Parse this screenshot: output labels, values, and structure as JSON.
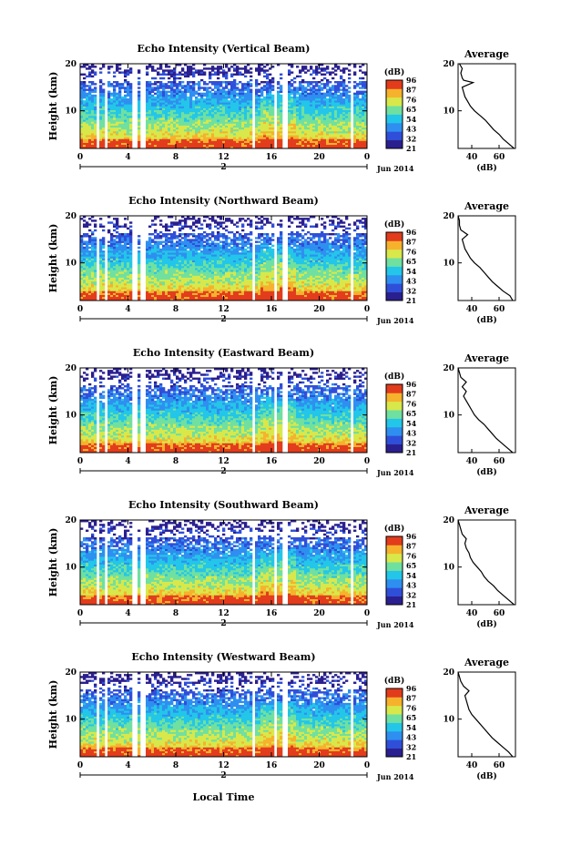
{
  "figure": {
    "xlabel": "Local Time",
    "colorbar_unit": "(dB)",
    "colorbar_ticks": [
      "96",
      "87",
      "76",
      "65",
      "54",
      "43",
      "32",
      "21"
    ],
    "colormap": [
      "#2a1f8f",
      "#2f4fd9",
      "#2e8ff0",
      "#23c6e8",
      "#6fe0a0",
      "#d8e84a",
      "#f6b22c",
      "#e23c1c"
    ]
  },
  "chart_data": [
    {
      "type": "heatmap",
      "title": "Echo Intensity (Vertical Beam)",
      "ylabel": "Height (km)",
      "yticks": [
        "20",
        "10"
      ],
      "ylim": [
        2,
        20
      ],
      "xticks": [
        "0",
        "4",
        "8",
        "12",
        "16",
        "20",
        "0"
      ],
      "xlim": [
        0,
        24
      ],
      "date_label": "2",
      "date_suffix": "Jun 2014",
      "gaps_hours": [
        [
          1.4,
          1.7
        ],
        [
          2.0,
          2.2
        ],
        [
          4.4,
          4.7
        ],
        [
          5.1,
          5.4
        ],
        [
          14.3,
          14.6
        ],
        [
          16.2,
          16.5
        ],
        [
          17.0,
          17.3
        ],
        [
          22.6,
          22.9
        ]
      ],
      "average": {
        "title": "Average",
        "xlabel": "(dB)",
        "xticks": [
          "40",
          "60"
        ],
        "yticks": [
          "20",
          "10"
        ],
        "xlim": [
          30,
          72
        ],
        "profile": [
          [
            71,
            2
          ],
          [
            67,
            3
          ],
          [
            63,
            4
          ],
          [
            60,
            5
          ],
          [
            56,
            6
          ],
          [
            53,
            7
          ],
          [
            50,
            8
          ],
          [
            46,
            9
          ],
          [
            42,
            10
          ],
          [
            39,
            11
          ],
          [
            37,
            12
          ],
          [
            35,
            13
          ],
          [
            34,
            14
          ],
          [
            33,
            15
          ],
          [
            41,
            16
          ],
          [
            34,
            16.5
          ],
          [
            33,
            17
          ],
          [
            32,
            18
          ],
          [
            33,
            19
          ],
          [
            31,
            20
          ]
        ]
      }
    },
    {
      "type": "heatmap",
      "title": "Echo Intensity (Northward Beam)",
      "ylabel": "Height (km)",
      "yticks": [
        "20",
        "10"
      ],
      "ylim": [
        2,
        20
      ],
      "xticks": [
        "0",
        "4",
        "8",
        "12",
        "16",
        "20",
        "0"
      ],
      "xlim": [
        0,
        24
      ],
      "date_label": "2",
      "date_suffix": "Jun 2014",
      "gaps_hours": [
        [
          1.4,
          1.7
        ],
        [
          2.0,
          2.2
        ],
        [
          4.4,
          4.7
        ],
        [
          5.1,
          5.4
        ],
        [
          14.3,
          14.6
        ],
        [
          16.2,
          16.5
        ],
        [
          17.0,
          17.3
        ],
        [
          22.6,
          22.9
        ]
      ],
      "average": {
        "title": "Average",
        "xlabel": "(dB)",
        "xticks": [
          "40",
          "60"
        ],
        "yticks": [
          "20",
          "10"
        ],
        "xlim": [
          30,
          72
        ],
        "profile": [
          [
            70,
            2
          ],
          [
            68,
            3
          ],
          [
            63,
            4
          ],
          [
            59,
            5
          ],
          [
            55,
            6
          ],
          [
            52,
            7
          ],
          [
            49,
            8
          ],
          [
            46,
            9
          ],
          [
            42,
            10
          ],
          [
            39,
            11
          ],
          [
            37,
            12
          ],
          [
            35,
            13
          ],
          [
            34,
            14
          ],
          [
            33,
            15
          ],
          [
            37,
            16
          ],
          [
            32,
            17
          ],
          [
            31,
            18
          ],
          [
            31,
            19
          ],
          [
            30,
            20
          ]
        ]
      }
    },
    {
      "type": "heatmap",
      "title": "Echo Intensity (Eastward Beam)",
      "ylabel": "Height (km)",
      "yticks": [
        "20",
        "10"
      ],
      "ylim": [
        2,
        20
      ],
      "xticks": [
        "0",
        "4",
        "8",
        "12",
        "16",
        "20",
        "0"
      ],
      "xlim": [
        0,
        24
      ],
      "date_label": "2",
      "date_suffix": "Jun 2014",
      "gaps_hours": [
        [
          1.4,
          1.7
        ],
        [
          2.0,
          2.2
        ],
        [
          4.4,
          4.7
        ],
        [
          5.1,
          5.4
        ],
        [
          14.3,
          14.6
        ],
        [
          16.2,
          16.5
        ],
        [
          17.0,
          17.3
        ],
        [
          22.6,
          22.9
        ]
      ],
      "average": {
        "title": "Average",
        "xlabel": "(dB)",
        "xticks": [
          "40",
          "60"
        ],
        "yticks": [
          "20",
          "10"
        ],
        "xlim": [
          30,
          72
        ],
        "profile": [
          [
            70,
            2
          ],
          [
            66,
            3
          ],
          [
            62,
            4
          ],
          [
            58,
            5
          ],
          [
            55,
            6
          ],
          [
            52,
            7
          ],
          [
            49,
            8
          ],
          [
            45,
            9
          ],
          [
            42,
            10
          ],
          [
            40,
            11
          ],
          [
            38,
            12
          ],
          [
            36,
            13
          ],
          [
            34,
            14
          ],
          [
            36,
            15
          ],
          [
            33,
            16
          ],
          [
            36,
            17
          ],
          [
            32,
            18
          ],
          [
            31,
            19
          ],
          [
            30,
            20
          ]
        ]
      }
    },
    {
      "type": "heatmap",
      "title": "Echo Intensity (Southward Beam)",
      "ylabel": "Height (km)",
      "yticks": [
        "20",
        "10"
      ],
      "ylim": [
        2,
        20
      ],
      "xticks": [
        "0",
        "4",
        "8",
        "12",
        "16",
        "20",
        "0"
      ],
      "xlim": [
        0,
        24
      ],
      "date_label": "2",
      "date_suffix": "Jun 2014",
      "gaps_hours": [
        [
          1.4,
          1.7
        ],
        [
          2.0,
          2.2
        ],
        [
          4.4,
          4.7
        ],
        [
          5.1,
          5.4
        ],
        [
          14.3,
          14.6
        ],
        [
          16.2,
          16.5
        ],
        [
          17.0,
          17.3
        ],
        [
          22.6,
          22.9
        ]
      ],
      "average": {
        "title": "Average",
        "xlabel": "(dB)",
        "xticks": [
          "40",
          "60"
        ],
        "yticks": [
          "20",
          "10"
        ],
        "xlim": [
          30,
          72
        ],
        "profile": [
          [
            71,
            2
          ],
          [
            67,
            3
          ],
          [
            63,
            4
          ],
          [
            59,
            5
          ],
          [
            56,
            6
          ],
          [
            52,
            7
          ],
          [
            49,
            8
          ],
          [
            47,
            9
          ],
          [
            44,
            10
          ],
          [
            41,
            11
          ],
          [
            39,
            12
          ],
          [
            38,
            13
          ],
          [
            36,
            14
          ],
          [
            35,
            15
          ],
          [
            36,
            16
          ],
          [
            33,
            17
          ],
          [
            32,
            18
          ],
          [
            31,
            19
          ],
          [
            30,
            20
          ]
        ]
      }
    },
    {
      "type": "heatmap",
      "title": "Echo Intensity (Westward Beam)",
      "ylabel": "Height (km)",
      "yticks": [
        "20",
        "10"
      ],
      "ylim": [
        2,
        20
      ],
      "xticks": [
        "0",
        "4",
        "8",
        "12",
        "16",
        "20",
        "0"
      ],
      "xlim": [
        0,
        24
      ],
      "date_label": "2",
      "date_suffix": "Jun 2014",
      "gaps_hours": [
        [
          1.4,
          1.7
        ],
        [
          2.0,
          2.2
        ],
        [
          4.4,
          4.7
        ],
        [
          5.1,
          5.4
        ],
        [
          14.3,
          14.6
        ],
        [
          16.2,
          16.5
        ],
        [
          17.0,
          17.3
        ],
        [
          22.6,
          22.9
        ]
      ],
      "average": {
        "title": "Average",
        "xlabel": "(dB)",
        "xticks": [
          "40",
          "60"
        ],
        "yticks": [
          "20",
          "10"
        ],
        "xlim": [
          30,
          72
        ],
        "profile": [
          [
            70,
            2
          ],
          [
            67,
            3
          ],
          [
            63,
            4
          ],
          [
            59,
            5
          ],
          [
            55,
            6
          ],
          [
            52,
            7
          ],
          [
            49,
            8
          ],
          [
            46,
            9
          ],
          [
            43,
            10
          ],
          [
            40,
            11
          ],
          [
            38,
            12
          ],
          [
            37,
            13
          ],
          [
            36,
            14
          ],
          [
            35,
            15
          ],
          [
            38,
            16
          ],
          [
            34,
            17
          ],
          [
            32,
            18
          ],
          [
            31,
            19
          ],
          [
            30,
            20
          ]
        ]
      }
    }
  ]
}
